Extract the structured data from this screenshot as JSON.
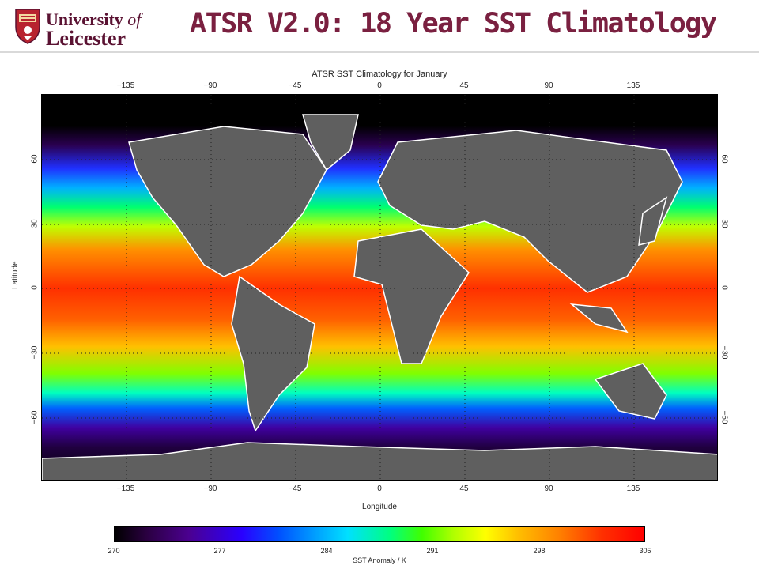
{
  "header": {
    "logo_line1": "University",
    "logo_line1_of": "of",
    "logo_line2": "Leicester",
    "title": "ATSR V2.0: 18 Year SST Climatology"
  },
  "figure": {
    "plot_title": "ATSR SST Climatology for January",
    "xlabel": "Longitude",
    "ylabel": "Latitude",
    "lon_ticks": [
      "−135",
      "−90",
      "−45",
      "0",
      "45",
      "90",
      "135"
    ],
    "lat_ticks": [
      "60",
      "30",
      "0",
      "−30",
      "−60"
    ],
    "colorbar": {
      "ticks": [
        "270",
        "277",
        "284",
        "291",
        "298",
        "305"
      ],
      "title": "SST Anomaly / K"
    }
  },
  "colors": {
    "title": "#7a2040",
    "logo": "#5a1232",
    "land": "#5f5f5f",
    "polar": "#000000"
  },
  "icons": {
    "crest": "university-crest-icon"
  }
}
